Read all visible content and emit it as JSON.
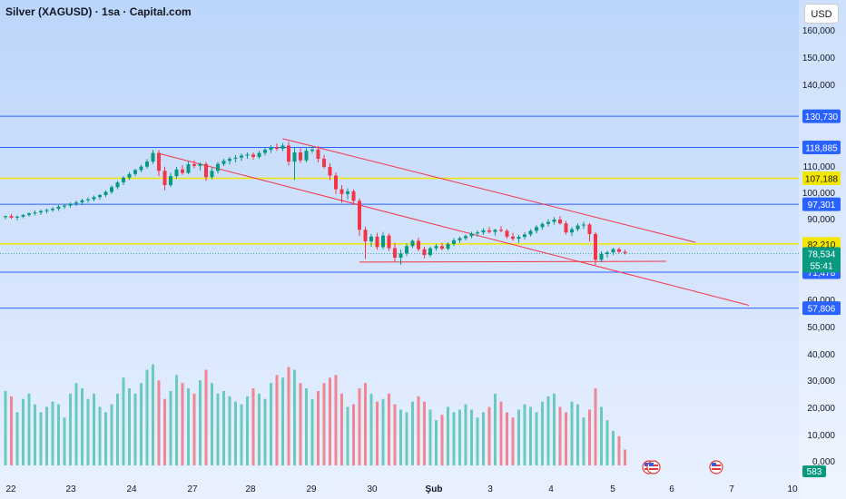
{
  "header": {
    "title": "Silver (XAGUSD) · 1sa · Capital.com",
    "currency": "USD"
  },
  "chart_data": {
    "type": "candlestick",
    "title": "Silver (XAGUSD) · 1sa · Capital.com",
    "x_tick_labels": [
      "22",
      "23",
      "24",
      "27",
      "28",
      "29",
      "30",
      "Şub",
      "3",
      "4",
      "5",
      "6",
      "7",
      "10"
    ],
    "y_tick_labels": [
      "160,000",
      "150,000",
      "140,000",
      "110,000",
      "100,000",
      "90,000",
      "60,000",
      "50,000",
      "40,000",
      "30,000",
      "20,000",
      "10,000",
      "0,000"
    ],
    "price_ylim": [
      57,
      163
    ],
    "volume_ylim": [
      0,
      52
    ],
    "candles": [
      [
        92.4,
        93.0,
        91.6,
        92.8
      ],
      [
        92.8,
        93.6,
        91.7,
        92.2
      ],
      [
        92.2,
        93.0,
        91.2,
        92.6
      ],
      [
        92.6,
        93.6,
        92.0,
        93.2
      ],
      [
        93.2,
        94.3,
        92.6,
        93.8
      ],
      [
        93.8,
        95.0,
        93.0,
        94.2
      ],
      [
        94.2,
        95.3,
        93.3,
        94.7
      ],
      [
        94.7,
        95.6,
        93.8,
        95.1
      ],
      [
        95.1,
        96.2,
        94.4,
        95.6
      ],
      [
        95.6,
        97.0,
        94.8,
        96.4
      ],
      [
        96.4,
        97.5,
        95.5,
        96.8
      ],
      [
        96.8,
        98.0,
        96.0,
        97.5
      ],
      [
        97.5,
        98.7,
        96.6,
        98.0
      ],
      [
        98.0,
        99.4,
        97.0,
        98.8
      ],
      [
        98.8,
        99.9,
        97.9,
        99.2
      ],
      [
        99.2,
        100.6,
        98.4,
        100.0
      ],
      [
        100.0,
        101.2,
        99.0,
        100.8
      ],
      [
        100.8,
        102.6,
        100.0,
        102.0
      ],
      [
        102.0,
        104.5,
        101.2,
        103.8
      ],
      [
        103.8,
        106.2,
        103.0,
        105.6
      ],
      [
        105.6,
        108.0,
        104.6,
        107.4
      ],
      [
        107.4,
        109.5,
        106.5,
        108.8
      ],
      [
        108.8,
        110.8,
        108.0,
        110.3
      ],
      [
        110.3,
        112.3,
        109.4,
        111.6
      ],
      [
        111.6,
        114.5,
        110.8,
        113.5
      ],
      [
        113.5,
        118.0,
        112.6,
        116.8
      ],
      [
        116.8,
        117.9,
        108.0,
        110.0
      ],
      [
        110.0,
        111.6,
        102.6,
        104.6
      ],
      [
        104.6,
        109.2,
        103.8,
        108.0
      ],
      [
        108.0,
        111.5,
        107.0,
        110.5
      ],
      [
        110.5,
        112.2,
        108.5,
        109.2
      ],
      [
        109.2,
        113.5,
        108.8,
        112.5
      ],
      [
        112.5,
        114.0,
        111.0,
        111.9
      ],
      [
        111.9,
        113.2,
        110.2,
        112.6
      ],
      [
        112.6,
        113.4,
        106.2,
        107.6
      ],
      [
        107.6,
        111.2,
        106.8,
        110.0
      ],
      [
        110.0,
        113.4,
        109.0,
        112.6
      ],
      [
        112.6,
        114.6,
        111.8,
        113.8
      ],
      [
        113.8,
        115.3,
        112.4,
        114.6
      ],
      [
        114.6,
        116.0,
        113.2,
        115.0
      ],
      [
        115.0,
        116.6,
        113.8,
        115.8
      ],
      [
        115.8,
        117.0,
        114.6,
        116.2
      ],
      [
        116.2,
        117.0,
        114.2,
        115.3
      ],
      [
        115.3,
        117.6,
        114.5,
        116.8
      ],
      [
        116.8,
        118.9,
        115.9,
        118.0
      ],
      [
        118.0,
        119.8,
        116.8,
        119.0
      ],
      [
        119.0,
        120.4,
        117.6,
        118.4
      ],
      [
        118.4,
        120.6,
        117.5,
        119.6
      ],
      [
        119.6,
        121.0,
        112.0,
        113.5
      ],
      [
        113.5,
        119.0,
        106.5,
        117.0
      ],
      [
        117.0,
        118.6,
        113.0,
        114.0
      ],
      [
        114.0,
        118.8,
        113.2,
        117.6
      ],
      [
        117.6,
        119.5,
        116.8,
        118.1
      ],
      [
        118.1,
        119.4,
        113.2,
        114.6
      ],
      [
        114.6,
        116.0,
        110.8,
        111.5
      ],
      [
        111.5,
        113.0,
        106.5,
        108.2
      ],
      [
        108.2,
        109.4,
        101.2,
        103.0
      ],
      [
        103.0,
        104.6,
        97.8,
        101.2
      ],
      [
        101.2,
        103.4,
        99.2,
        102.2
      ],
      [
        102.2,
        103.0,
        97.2,
        98.6
      ],
      [
        98.6,
        99.5,
        85.2,
        87.6
      ],
      [
        87.6,
        88.8,
        76.5,
        83.2
      ],
      [
        83.2,
        86.0,
        81.2,
        85.0
      ],
      [
        85.0,
        86.5,
        80.0,
        81.0
      ],
      [
        81.0,
        86.8,
        80.2,
        85.4
      ],
      [
        85.4,
        86.2,
        79.6,
        80.6
      ],
      [
        80.6,
        82.6,
        75.6,
        77.0
      ],
      [
        77.0,
        80.0,
        74.3,
        78.6
      ],
      [
        78.6,
        82.4,
        77.6,
        81.4
      ],
      [
        81.4,
        84.0,
        80.6,
        83.4
      ],
      [
        83.4,
        84.6,
        79.4,
        80.2
      ],
      [
        80.2,
        81.2,
        76.8,
        78.0
      ],
      [
        78.0,
        81.2,
        77.2,
        80.6
      ],
      [
        80.6,
        82.2,
        79.6,
        81.4
      ],
      [
        81.4,
        82.6,
        79.8,
        80.4
      ],
      [
        80.4,
        82.8,
        79.7,
        82.2
      ],
      [
        82.2,
        84.4,
        81.4,
        83.6
      ],
      [
        83.6,
        85.0,
        82.7,
        84.4
      ],
      [
        84.4,
        85.8,
        83.6,
        85.2
      ],
      [
        85.2,
        86.9,
        84.4,
        86.2
      ],
      [
        86.2,
        87.4,
        85.0,
        86.6
      ],
      [
        86.6,
        88.2,
        85.6,
        87.4
      ],
      [
        87.4,
        88.6,
        86.2,
        86.8
      ],
      [
        86.8,
        88.0,
        85.4,
        87.6
      ],
      [
        87.6,
        89.0,
        86.6,
        87.2
      ],
      [
        87.2,
        87.9,
        84.2,
        85.0
      ],
      [
        85.0,
        86.4,
        83.4,
        84.2
      ],
      [
        84.2,
        85.6,
        82.6,
        84.9
      ],
      [
        84.9,
        86.6,
        84.0,
        85.8
      ],
      [
        85.8,
        87.8,
        85.0,
        87.2
      ],
      [
        87.2,
        89.3,
        86.2,
        88.6
      ],
      [
        88.6,
        90.4,
        87.6,
        89.8
      ],
      [
        89.8,
        91.6,
        88.8,
        90.6
      ],
      [
        90.6,
        92.4,
        89.6,
        91.5
      ],
      [
        91.5,
        92.8,
        89.6,
        90.0
      ],
      [
        90.0,
        91.0,
        85.8,
        86.6
      ],
      [
        86.6,
        88.6,
        85.2,
        87.8
      ],
      [
        87.8,
        90.0,
        87.0,
        89.2
      ],
      [
        89.2,
        90.6,
        88.0,
        89.6
      ],
      [
        89.6,
        90.2,
        83.2,
        86.0
      ],
      [
        86.0,
        86.8,
        74.2,
        76.2
      ],
      [
        76.2,
        79.4,
        75.2,
        78.4
      ],
      [
        78.4,
        79.6,
        77.0,
        79.0
      ],
      [
        79.0,
        80.8,
        78.0,
        80.2
      ],
      [
        80.2,
        80.9,
        78.8,
        79.2
      ],
      [
        79.2,
        80.0,
        78.2,
        78.8
      ]
    ],
    "volume": [
      28,
      26,
      20,
      25,
      27,
      23,
      20,
      22,
      24,
      23,
      18,
      27,
      31,
      29,
      25,
      27,
      22,
      20,
      23,
      27,
      33,
      29,
      27,
      31,
      36,
      38,
      32,
      25,
      28,
      34,
      31,
      29,
      27,
      32,
      36,
      31,
      27,
      28,
      26,
      24,
      23,
      26,
      29,
      27,
      25,
      31,
      34,
      33,
      37,
      36,
      31,
      29,
      25,
      28,
      31,
      33,
      34,
      27,
      22,
      23,
      29,
      31,
      27,
      24,
      25,
      27,
      23,
      21,
      20,
      24,
      26,
      24,
      21,
      17,
      19,
      22,
      20,
      21,
      23,
      21,
      18,
      20,
      22,
      27,
      24,
      20,
      18,
      21,
      23,
      22,
      20,
      24,
      26,
      27,
      22,
      20,
      24,
      23,
      18,
      21,
      29,
      22,
      17,
      13,
      11,
      6
    ],
    "levels": [
      {
        "value": 130.73,
        "label": "130,730",
        "color": "#2962ff"
      },
      {
        "value": 118.885,
        "label": "118,885",
        "color": "#2962ff"
      },
      {
        "value": 107.188,
        "label": "107,188",
        "color": "#f3e600"
      },
      {
        "value": 97.301,
        "label": "97,301",
        "color": "#2962ff"
      },
      {
        "value": 82.21,
        "label": "82,210",
        "color": "#f3e600"
      },
      {
        "value": 71.478,
        "label": "71,478",
        "color": "#2962ff"
      },
      {
        "value": 57.806,
        "label": "57,806",
        "color": "#2962ff"
      }
    ],
    "last_price": {
      "value": 78.534,
      "label": "78,534",
      "countdown": "55:41",
      "color": "#089981"
    },
    "last_volume": {
      "label": "583",
      "color": "#089981"
    },
    "trend_lines": [
      {
        "x1": 26,
        "y1": 116.6,
        "x2": 126,
        "y2": 58.9,
        "color": "#f23645"
      },
      {
        "x1": 47,
        "y1": 122.2,
        "x2": 117,
        "y2": 82.8,
        "color": "#f23645"
      },
      {
        "x1": 60,
        "y1": 75.3,
        "x2": 112,
        "y2": 75.6,
        "color": "#f23645"
      }
    ],
    "colors": {
      "up": "#089981",
      "down": "#f23645",
      "background_top": "#bcd5fb",
      "background_bottom": "#e9f1fe",
      "level_label_text_blue": "#ffffff",
      "level_label_text_yellow": "#131722"
    },
    "grid": false,
    "legend": "none"
  }
}
